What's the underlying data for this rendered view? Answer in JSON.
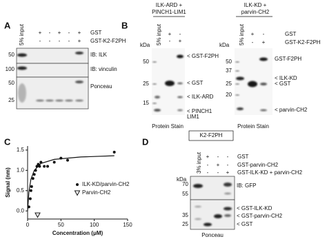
{
  "panel_a": {
    "label": "A",
    "input": "5% input",
    "row_labels": [
      "GST",
      "GST-K2-F2PH"
    ],
    "row_marks": [
      [
        "+",
        "-",
        "+",
        "-",
        "+"
      ],
      [
        "-",
        "-",
        "-",
        "-",
        "+"
      ]
    ],
    "markers": [
      "50",
      "100",
      "50",
      "25"
    ],
    "blots": [
      "IB: ILK",
      "IB: vinculin",
      "Ponceau"
    ]
  },
  "panel_b": {
    "label": "B",
    "row_labels": [
      "GST",
      "GST-K2-F2PH"
    ],
    "gels": [
      {
        "header": [
          "ILK-ARD +",
          "PINCH1-LIM1"
        ],
        "input": "5% input",
        "row_marks": [
          [
            "+",
            "-"
          ],
          [
            "-",
            "+"
          ]
        ],
        "kda": "kDa",
        "markers": [
          "50",
          "25",
          "15"
        ],
        "bands": [
          "< GST-F2PH",
          "< GST",
          "< ILK-ARD",
          "< PINCH1",
          "LIM1"
        ],
        "stain": "Protein Stain"
      },
      {
        "header": [
          "ILK-KD +",
          "parvin-CH2"
        ],
        "input": "5% input",
        "row_marks": [
          [
            "+",
            "-"
          ],
          [
            "-",
            "+"
          ]
        ],
        "kda": "kDa",
        "markers": [
          "50",
          "37",
          "25",
          "20"
        ],
        "bands": [
          "GST-F2PH",
          "< ILK-KD",
          "< GST",
          "< parvin-CH2"
        ],
        "stain": "Protein Stain"
      }
    ]
  },
  "chart_data": {
    "type": "scatter",
    "panel_label": "C",
    "xlabel": "Concentration (μM)",
    "ylabel": "Signal (nm)",
    "xlim": [
      0,
      150
    ],
    "ylim": [
      -0.2,
      1.6
    ],
    "xticks": [
      0,
      50,
      100,
      150
    ],
    "yticks": [
      {
        "value": 0,
        "label": "0.0"
      },
      0.5,
      {
        "value": 1,
        "label": "1.0"
      },
      1.5
    ],
    "series": [
      {
        "name": "ILK-KD/parvin-CH2",
        "marker": "circle",
        "color": "#111111",
        "x": [
          2,
          4,
          5,
          6,
          8,
          10,
          12,
          14,
          16,
          18,
          20,
          25,
          30,
          40,
          50,
          60,
          130
        ],
        "values": [
          0.1,
          0.3,
          0.5,
          0.6,
          0.8,
          0.9,
          1.0,
          1.1,
          1.15,
          1.1,
          1.2,
          1.1,
          1.1,
          1.2,
          1.3,
          1.25,
          1.45
        ]
      },
      {
        "name": "Parvin-CH2",
        "marker": "triangle",
        "color": "#111111",
        "x": [
          15
        ],
        "values": [
          -0.1
        ]
      }
    ],
    "fit": {
      "x": [
        0,
        2,
        5,
        10,
        20,
        40,
        80,
        130
      ],
      "values": [
        0,
        0.47,
        0.78,
        1.0,
        1.17,
        1.27,
        1.33,
        1.36
      ],
      "color": "#111111"
    }
  },
  "panel_d": {
    "label": "D",
    "header": "K2-F2PH",
    "input": "3% input",
    "row_labels": [
      "GST",
      "GST-parvin-CH2",
      "GST-ILK-KD + parvin-CH2"
    ],
    "row_marks": [
      [
        "+",
        "-",
        "-"
      ],
      [
        "-",
        "+",
        "-"
      ],
      [
        "-",
        "-",
        "+"
      ]
    ],
    "kda": "kDa",
    "markers": [
      "70",
      "55",
      "35",
      "25"
    ],
    "blots": [
      "IB: GFP"
    ],
    "bands": [
      "< GST-ILK-KD",
      "< GST-parvin-CH2",
      "< GST"
    ],
    "stain": "Ponceau"
  }
}
